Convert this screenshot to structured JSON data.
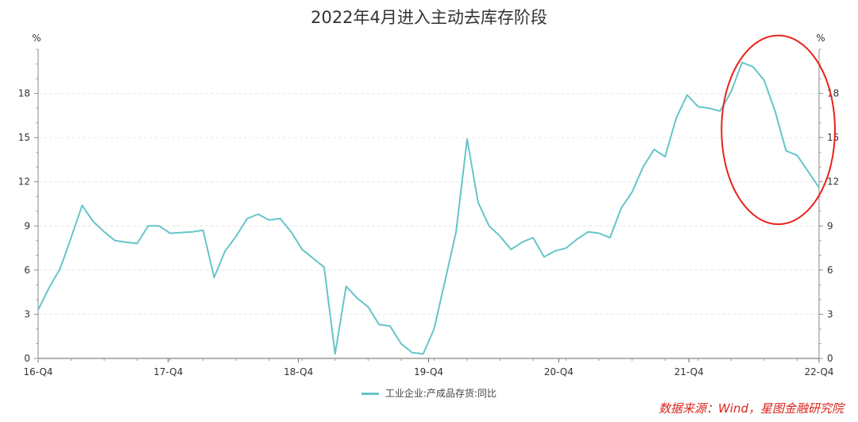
{
  "chart_data": {
    "type": "line",
    "title": "2022年4月进入主动去库存阶段",
    "ylabel_left": "%",
    "ylabel_right": "%",
    "ylim": [
      0,
      21
    ],
    "yticks": [
      0,
      3,
      6,
      9,
      12,
      15,
      18
    ],
    "xtick_labels": [
      "16-Q4",
      "17-Q4",
      "18-Q4",
      "19-Q4",
      "20-Q4",
      "21-Q4",
      "22-Q4"
    ],
    "grid": true,
    "legend_position": "bottom",
    "color": "#66c5c9",
    "annotation_color": "#e8231a",
    "source": "数据来源：Wind，星图金融研究院",
    "series": [
      {
        "name": "工业企业:产成品存货:同比",
        "values": [
          3.3,
          4.8,
          6.1,
          8.2,
          10.4,
          9.3,
          8.6,
          8.0,
          7.9,
          7.8,
          9.0,
          9.0,
          8.5,
          8.55,
          8.6,
          8.7,
          5.5,
          7.3,
          8.3,
          9.5,
          9.8,
          9.4,
          9.5,
          8.6,
          7.4,
          6.8,
          6.2,
          0.3,
          4.9,
          4.1,
          3.5,
          2.3,
          2.2,
          1.0,
          0.4,
          0.3,
          2.0,
          5.3,
          8.6,
          14.9,
          10.6,
          9.0,
          8.3,
          7.4,
          7.9,
          8.2,
          6.9,
          7.3,
          7.5,
          8.1,
          8.6,
          8.5,
          8.2,
          10.2,
          11.3,
          13.0,
          14.2,
          13.7,
          16.3,
          17.9,
          17.1,
          17.0,
          16.8,
          18.1,
          20.1,
          19.8,
          18.9,
          16.8,
          14.1,
          13.8,
          12.7,
          11.6
        ]
      }
    ]
  }
}
